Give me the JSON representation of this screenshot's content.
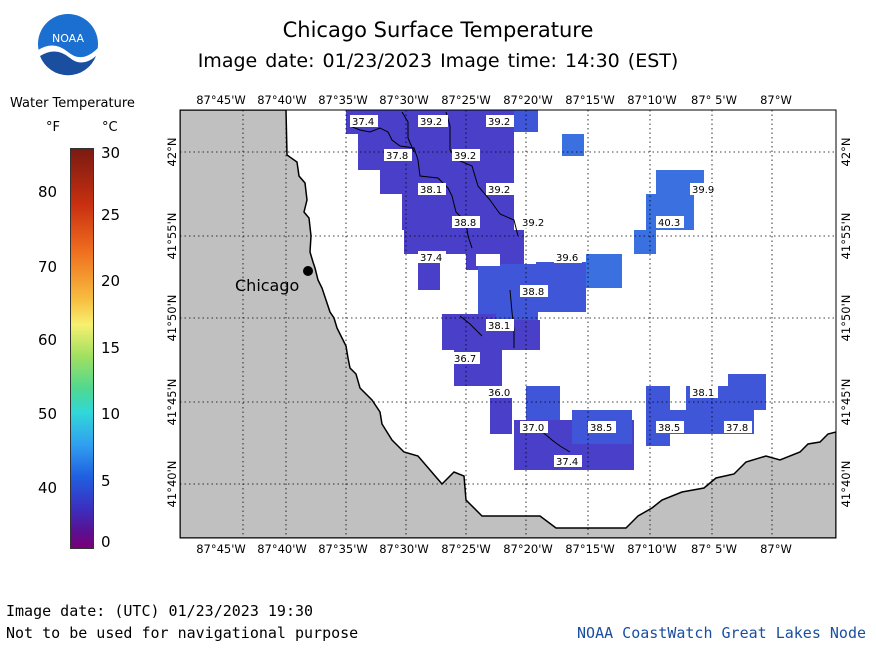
{
  "title": "Chicago Surface Temperature",
  "subtitle": "Image date: 01/23/2023    Image time: 14:30 (EST)",
  "logo_text": "NOAA",
  "legend": {
    "title": "Water Temperature",
    "unit_f": "°F",
    "unit_c": "°C",
    "f_ticks": [
      "80",
      "70",
      "60",
      "50",
      "40"
    ],
    "c_ticks": [
      "30",
      "25",
      "20",
      "15",
      "10",
      "5",
      "0"
    ]
  },
  "city_label": "Chicago",
  "lon_labels": [
    "87°45'W",
    "87°40'W",
    "87°35'W",
    "87°30'W",
    "87°25'W",
    "87°20'W",
    "87°15'W",
    "87°10'W",
    "87° 5'W",
    "87°W"
  ],
  "lat_labels": [
    "42°N",
    "41°55'N",
    "41°50'N",
    "41°45'N",
    "41°40'N"
  ],
  "temperature_labels": [
    "37.4",
    "39.2",
    "39.2",
    "37.8",
    "39.2",
    "38.1",
    "39.2",
    "39.9",
    "38.8",
    "39.2",
    "40.3",
    "37.4",
    "39.6",
    "38.8",
    "38.1",
    "36.7",
    "36.0",
    "38.1",
    "37.0",
    "38.5",
    "38.5",
    "37.8",
    "37.4"
  ],
  "footer_line1": "Image date: (UTC) 01/23/2023  19:30",
  "footer_line2": "Not to be used for navigational purpose",
  "credit": "NOAA CoastWatch Great Lakes Node",
  "colors": {
    "land": "#c0c0c0",
    "water_cold": "#4a3fc8",
    "water_mid": "#3f56d8",
    "water_warm": "#3a70e0"
  }
}
